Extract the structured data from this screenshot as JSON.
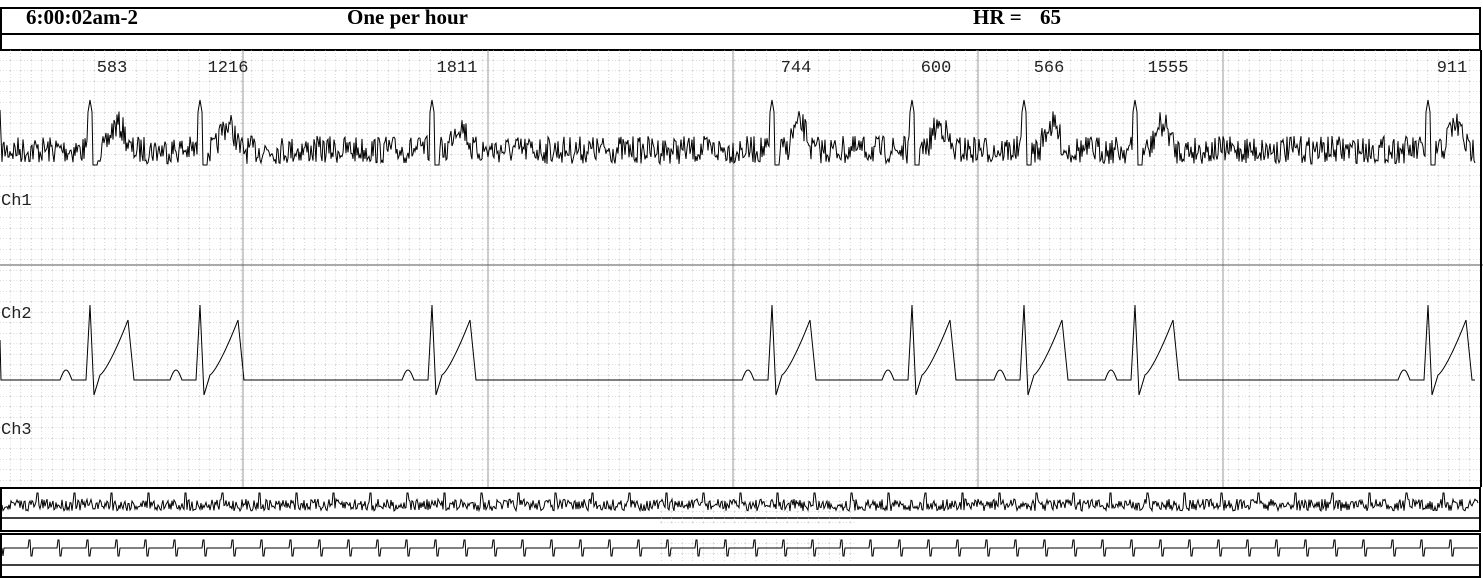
{
  "header": {
    "time": "6:00:02am-2",
    "mode": "One per hour",
    "hr_label": "HR =",
    "hr_value": 65
  },
  "rr_intervals": [
    583,
    1216,
    1811,
    744,
    600,
    566,
    1555,
    911
  ],
  "channels": [
    "Ch1",
    "Ch2",
    "Ch3"
  ]
}
